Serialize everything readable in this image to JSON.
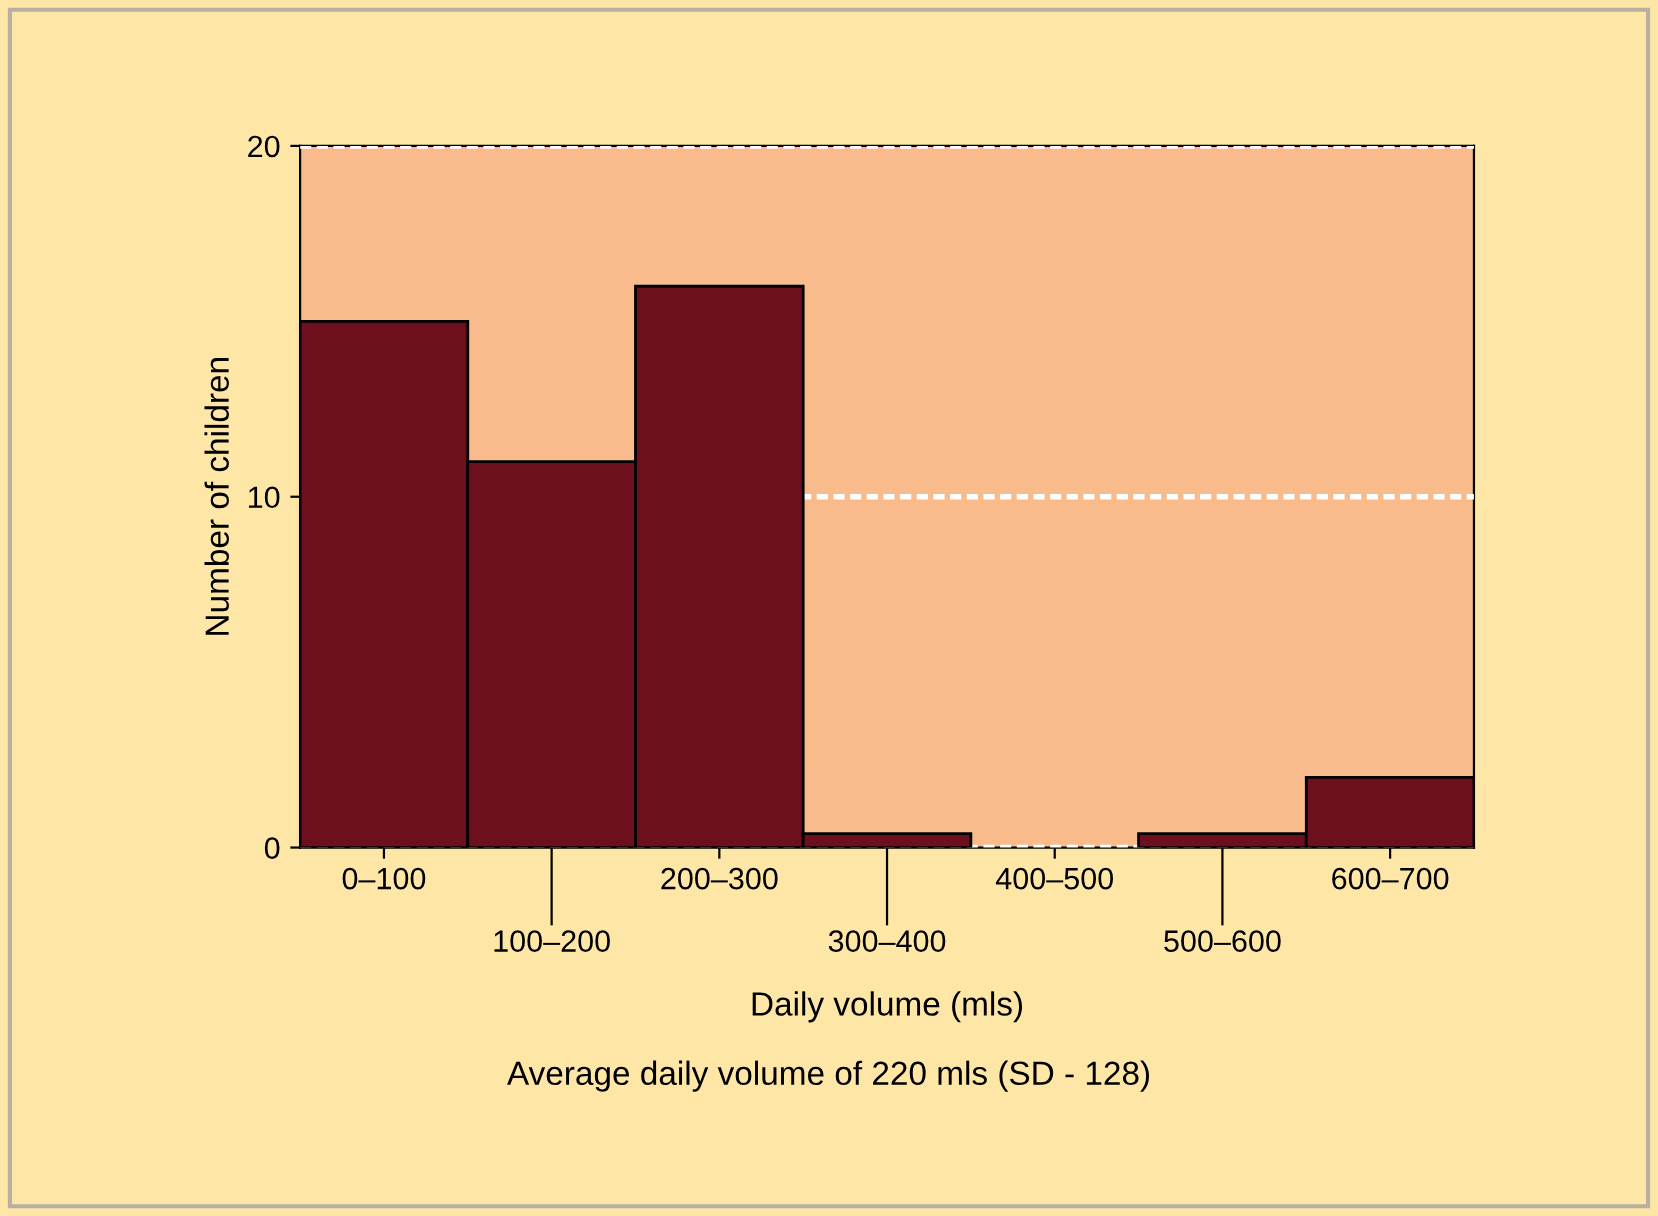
{
  "chart_data": {
    "type": "bar",
    "xlabel": "Daily volume (mls)",
    "ylabel": "Number of children",
    "categories": [
      "0–100",
      "100–200",
      "200–300",
      "300–400",
      "400–500",
      "500–600",
      "600–700"
    ],
    "values": [
      15,
      11,
      16,
      0.4,
      0,
      0.4,
      2
    ],
    "color": "#6e0f1e",
    "ylim": [
      0,
      20
    ],
    "yticks": [
      0,
      10,
      20
    ],
    "grid": "y",
    "annotations": [
      "Average daily volume of 220 mls (SD - 128)"
    ]
  }
}
